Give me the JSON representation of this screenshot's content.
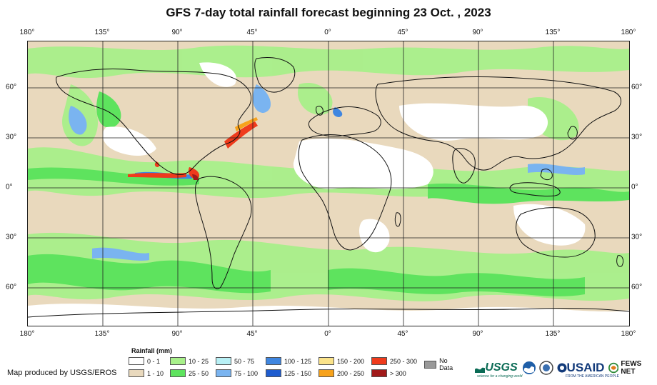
{
  "title": "GFS 7-day total rainfall forecast beginning 23 Oct. , 2023",
  "longitude_labels": [
    "180°",
    "135°",
    "90°",
    "45°",
    "0°",
    "45°",
    "90°",
    "135°",
    "180°"
  ],
  "latitude_labels": [
    "60°",
    "30°",
    "0°",
    "30°",
    "60°"
  ],
  "legend": {
    "title": "Rainfall (mm)",
    "items": [
      {
        "label": "0 - 1",
        "color": "#ffffff"
      },
      {
        "label": "1 - 10",
        "color": "#e9d9bd"
      },
      {
        "label": "10 - 25",
        "color": "#a8f08a"
      },
      {
        "label": "25 - 50",
        "color": "#5ee35e"
      },
      {
        "label": "50 - 75",
        "color": "#b8f0f5"
      },
      {
        "label": "75 - 100",
        "color": "#7ab4f0"
      },
      {
        "label": "100 - 125",
        "color": "#3f86e0"
      },
      {
        "label": "125 - 150",
        "color": "#1e5ccf"
      },
      {
        "label": "150 - 200",
        "color": "#fbe38a"
      },
      {
        "label": "200 - 250",
        "color": "#f7a21b"
      },
      {
        "label": "250 - 300",
        "color": "#ef3b1c"
      },
      {
        "label": "> 300",
        "color": "#a11a1a"
      },
      {
        "label": "No Data",
        "color": "#999999"
      }
    ]
  },
  "credit": "Map produced by USGS/EROS",
  "logos": {
    "usgs": "USGS",
    "usgs_tagline": "science for a changing world",
    "usaid": "USAID",
    "usaid_tagline": "FROM THE AMERICAN PEOPLE",
    "fews": "FEWS NET"
  }
}
